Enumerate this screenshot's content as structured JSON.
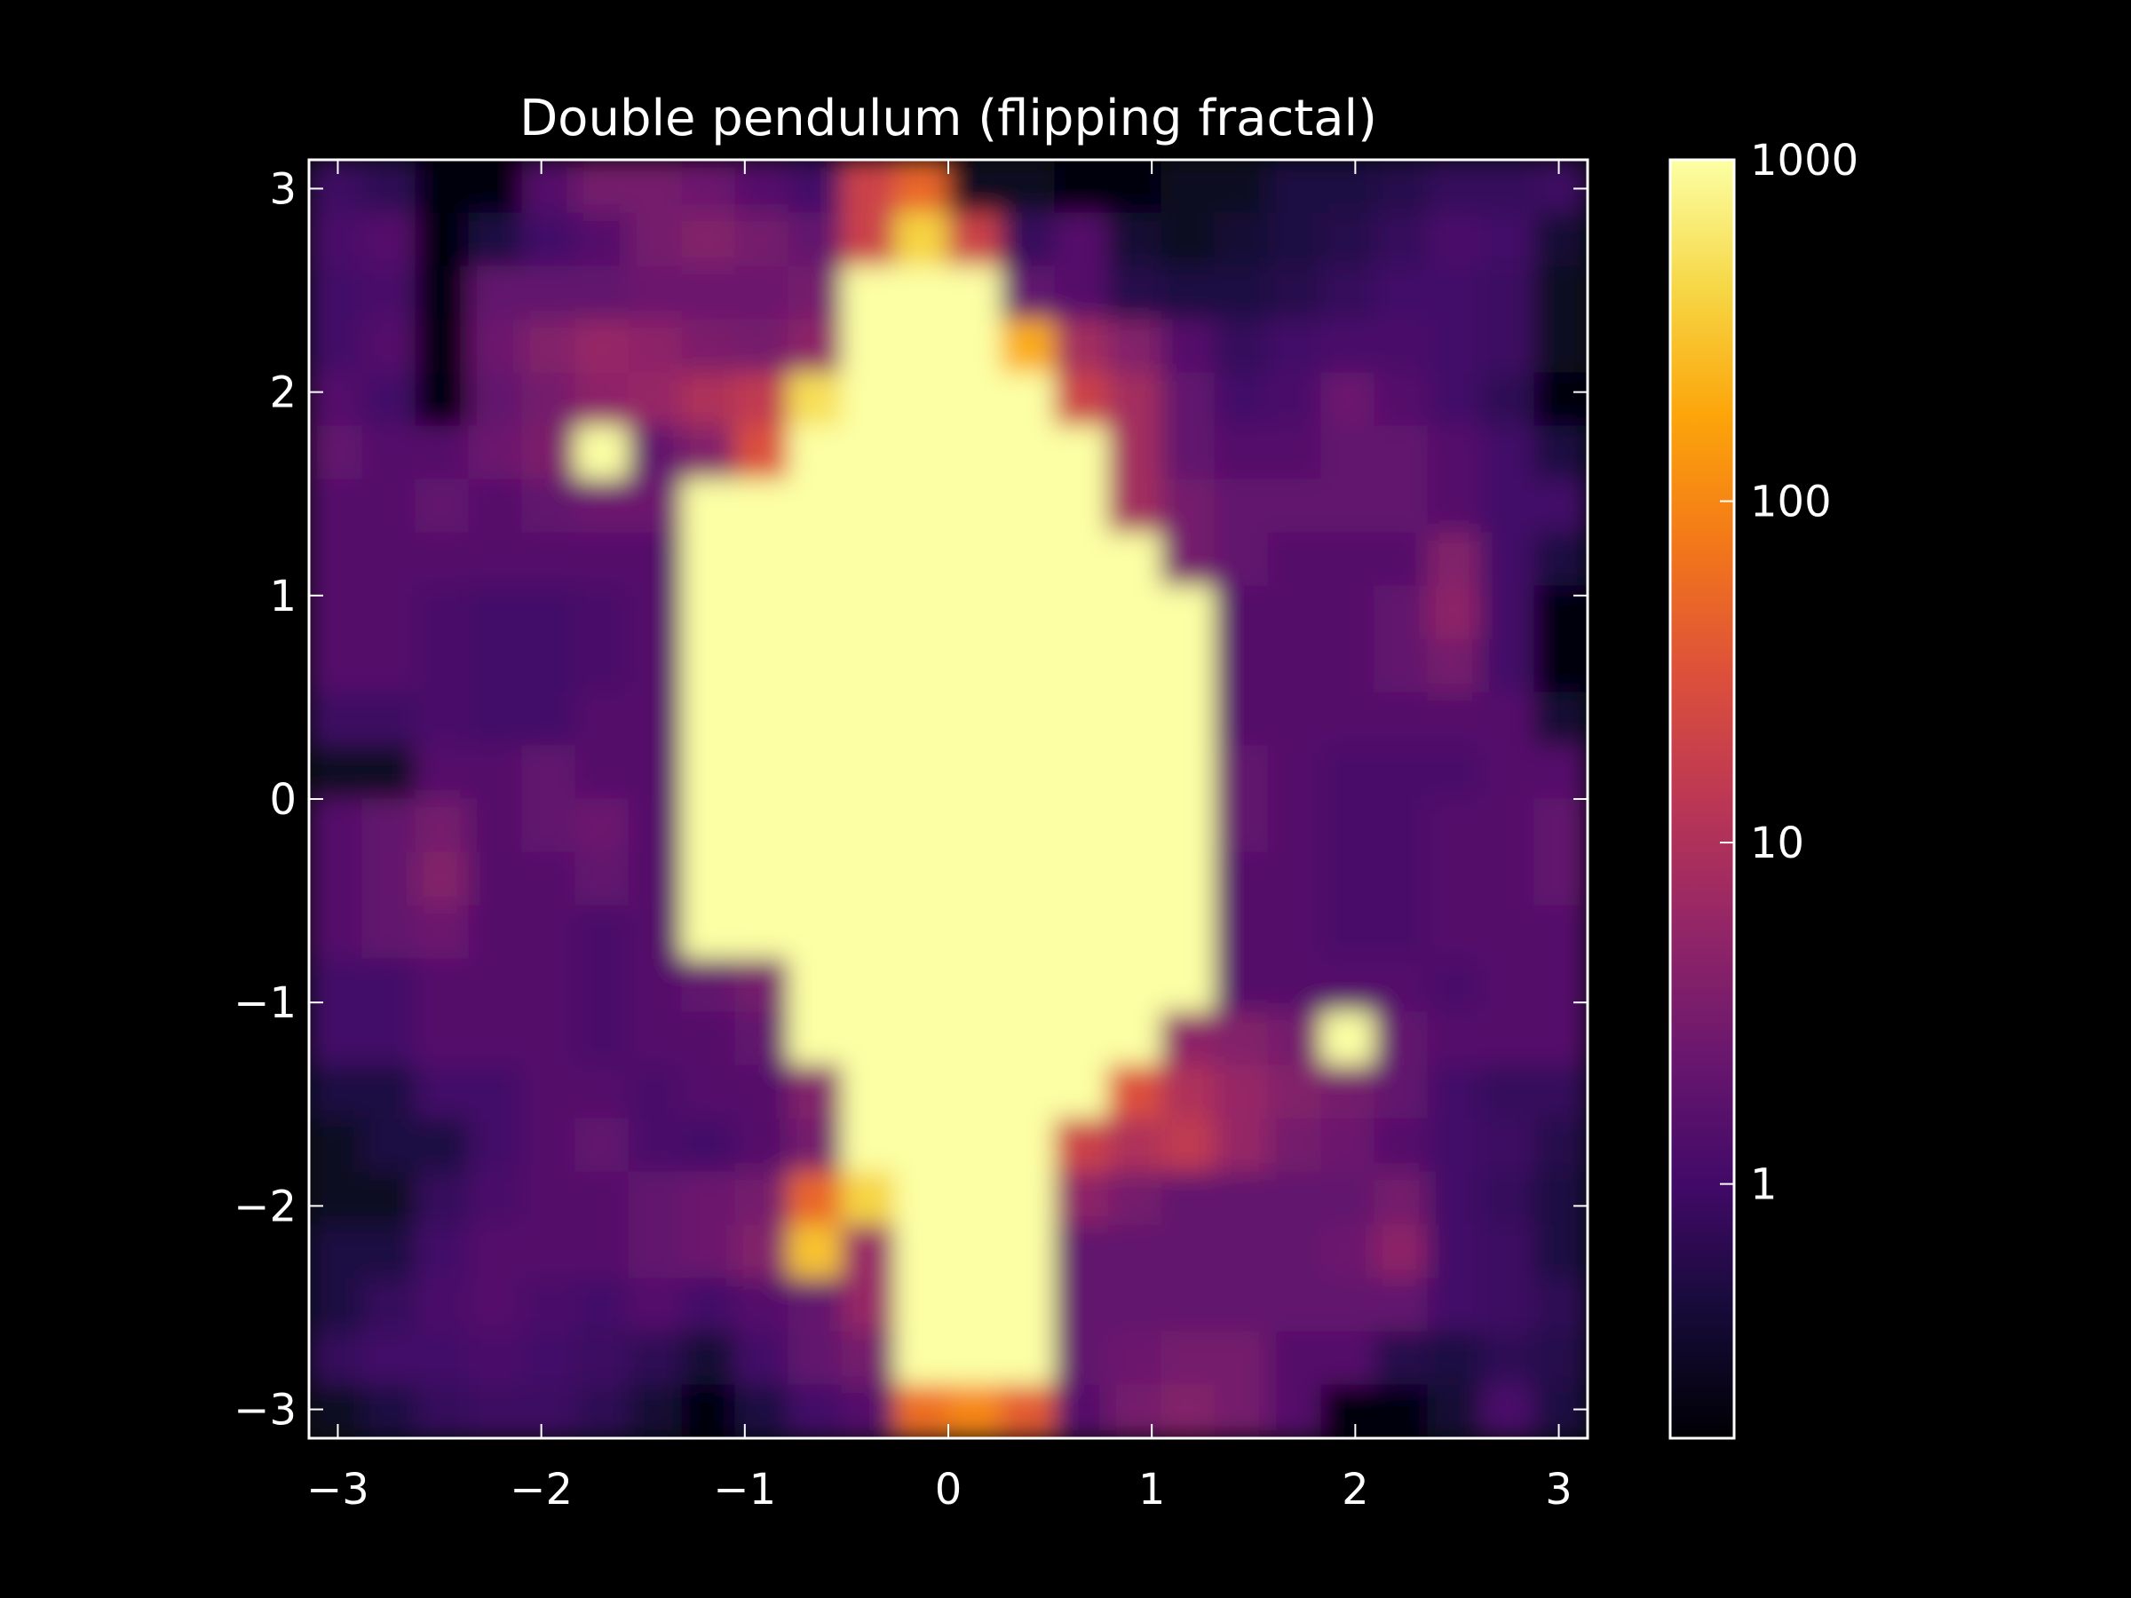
{
  "chart_data": {
    "type": "heatmap",
    "title": "Double pendulum (flipping fractal)",
    "xlabel": "",
    "ylabel": "",
    "xlim": [
      -3.14159,
      3.14159
    ],
    "ylim": [
      -3.14159,
      3.14159
    ],
    "x_ticks": [
      -3,
      -2,
      -1,
      0,
      1,
      2,
      3
    ],
    "x_tick_labels": [
      "−3",
      "−2",
      "−1",
      "0",
      "1",
      "2",
      "3"
    ],
    "y_ticks": [
      -3,
      -2,
      -1,
      0,
      1,
      2,
      3
    ],
    "y_tick_labels": [
      "−3",
      "−2",
      "−1",
      "0",
      "1",
      "2",
      "3"
    ],
    "colormap": "inferno",
    "color_scale": "log",
    "colorbar_range": [
      0.18,
      1000
    ],
    "colorbar_ticks": [
      1,
      10,
      100,
      1000
    ],
    "colorbar_tick_labels": [
      "1",
      "10",
      "100",
      "1000"
    ],
    "grid": false,
    "grid_shape": [
      24,
      24
    ],
    "grid_note_x": "columns span x from -pi to pi, rows listed from y = pi (top) down to y = -pi (bottom)",
    "values": [
      [
        0.9,
        0.7,
        0.2,
        0.2,
        1.5,
        3.0,
        3.0,
        2.5,
        1.5,
        1.0,
        20,
        50,
        0.3,
        0.3,
        0.2,
        0.2,
        0.3,
        0.3,
        0.5,
        0.5,
        0.6,
        0.8,
        0.8,
        0.9
      ],
      [
        1.2,
        1.5,
        0.2,
        0.5,
        1.0,
        1.5,
        3.0,
        4.0,
        3.0,
        2.0,
        20,
        400,
        20,
        0.8,
        1.5,
        0.4,
        0.3,
        0.4,
        0.5,
        0.6,
        0.8,
        1.2,
        1.0,
        0.4
      ],
      [
        1.0,
        1.2,
        0.2,
        2.0,
        2.0,
        2.0,
        2.5,
        2.5,
        2.5,
        3.0,
        1000,
        1000,
        1000,
        2.0,
        1.5,
        0.6,
        0.5,
        0.5,
        0.6,
        0.8,
        1.0,
        1.0,
        0.9,
        0.3
      ],
      [
        1.0,
        1.5,
        0.2,
        2.5,
        4.0,
        6.0,
        5.0,
        3.5,
        3.0,
        5.0,
        1000,
        1000,
        1000,
        200,
        8.0,
        4.0,
        1.5,
        0.8,
        1.0,
        1.2,
        1.2,
        1.0,
        0.9,
        0.3
      ],
      [
        1.5,
        1.0,
        0.2,
        2.0,
        3.0,
        5.0,
        6.0,
        10,
        15,
        500,
        1000,
        1000,
        1000,
        1000,
        20,
        8.0,
        2.0,
        1.0,
        1.2,
        2.5,
        1.5,
        1.0,
        0.7,
        0.2
      ],
      [
        2.0,
        1.5,
        1.5,
        2.5,
        3.5,
        1000,
        2.0,
        4.0,
        30,
        1000,
        1000,
        1000,
        1000,
        1000,
        1000,
        8.0,
        2.0,
        1.5,
        1.5,
        2.0,
        2.0,
        1.5,
        1.0,
        0.5
      ],
      [
        1.5,
        1.5,
        2.0,
        1.5,
        2.0,
        2.5,
        2.5,
        1000,
        1000,
        1000,
        1000,
        1000,
        1000,
        1000,
        1000,
        8.0,
        3.0,
        2.0,
        2.0,
        2.0,
        2.0,
        1.5,
        1.0,
        1.0
      ],
      [
        1.5,
        1.5,
        1.5,
        1.5,
        1.5,
        1.5,
        1.5,
        1000,
        1000,
        1000,
        1000,
        1000,
        1000,
        1000,
        1000,
        1000,
        3.0,
        2.0,
        1.5,
        1.5,
        1.5,
        4.0,
        1.0,
        0.5
      ],
      [
        1.5,
        1.5,
        1.2,
        1.0,
        1.0,
        1.2,
        1.5,
        1000,
        1000,
        1000,
        1000,
        1000,
        1000,
        1000,
        1000,
        1000,
        1000,
        1.5,
        1.5,
        1.5,
        2.0,
        5.0,
        1.0,
        0.2
      ],
      [
        1.5,
        1.5,
        1.2,
        1.0,
        1.0,
        1.2,
        1.5,
        1000,
        1000,
        1000,
        1000,
        1000,
        1000,
        1000,
        1000,
        1000,
        1000,
        1.5,
        1.5,
        1.5,
        2.0,
        3.0,
        1.0,
        0.2
      ],
      [
        0.9,
        0.9,
        1.2,
        1.0,
        1.0,
        1.5,
        1.5,
        1000,
        1000,
        1000,
        1000,
        1000,
        1000,
        1000,
        1000,
        1000,
        1000,
        1.5,
        1.5,
        1.5,
        1.5,
        1.5,
        1.5,
        0.4
      ],
      [
        0.3,
        0.3,
        1.5,
        1.5,
        2.0,
        1.5,
        1.5,
        1000,
        1000,
        1000,
        1000,
        1000,
        1000,
        1000,
        1000,
        1000,
        1000,
        2.0,
        1.5,
        1.2,
        1.2,
        1.2,
        1.5,
        1.5
      ],
      [
        1.5,
        2.0,
        3.0,
        1.5,
        2.0,
        2.5,
        1.5,
        1000,
        1000,
        1000,
        1000,
        1000,
        1000,
        1000,
        1000,
        1000,
        1000,
        2.0,
        1.5,
        1.2,
        1.2,
        1.5,
        1.5,
        2.0
      ],
      [
        1.5,
        2.0,
        4.0,
        1.5,
        1.5,
        2.0,
        1.5,
        1000,
        1000,
        1000,
        1000,
        1000,
        1000,
        1000,
        1000,
        1000,
        1000,
        1.5,
        1.5,
        1.2,
        1.2,
        1.5,
        1.5,
        2.0
      ],
      [
        1.5,
        2.0,
        2.5,
        1.5,
        1.5,
        1.2,
        1.5,
        1000,
        1000,
        1000,
        1000,
        1000,
        1000,
        1000,
        1000,
        1000,
        1000,
        1.5,
        1.5,
        1.2,
        1.2,
        1.5,
        1.5,
        1.5
      ],
      [
        1.0,
        1.0,
        1.5,
        1.5,
        1.5,
        1.2,
        1.5,
        2.0,
        3.0,
        1000,
        1000,
        1000,
        1000,
        1000,
        1000,
        1000,
        1000,
        1.5,
        1.5,
        1.5,
        1.5,
        1.2,
        1.5,
        1.5
      ],
      [
        1.0,
        1.0,
        1.5,
        1.5,
        1.5,
        1.2,
        1.5,
        1.5,
        2.0,
        1000,
        1000,
        1000,
        1000,
        1000,
        1000,
        1000,
        5.0,
        4.0,
        3.0,
        1000,
        2.0,
        1.5,
        1.5,
        1.5
      ],
      [
        0.5,
        0.5,
        1.0,
        1.0,
        1.5,
        1.5,
        1.2,
        1.5,
        1.5,
        4.0,
        1000,
        1000,
        1000,
        1000,
        1000,
        30,
        10,
        6.0,
        4.0,
        3.0,
        2.0,
        1.0,
        0.8,
        0.8
      ],
      [
        0.3,
        0.5,
        0.5,
        1.0,
        1.5,
        2.0,
        1.2,
        1.0,
        1.5,
        3.0,
        1000,
        1000,
        1000,
        1000,
        20,
        10,
        15,
        6.0,
        3.0,
        2.5,
        1.5,
        1.0,
        0.9,
        0.6
      ],
      [
        0.3,
        0.3,
        0.8,
        1.2,
        1.5,
        1.5,
        2.0,
        2.5,
        3.0,
        50,
        400,
        1000,
        1000,
        1000,
        5.0,
        3.0,
        2.0,
        2.0,
        2.0,
        2.0,
        3.0,
        1.0,
        0.8,
        0.5
      ],
      [
        0.5,
        0.5,
        1.0,
        1.5,
        1.5,
        1.5,
        2.0,
        2.5,
        4.0,
        300,
        6.0,
        1000,
        1000,
        1000,
        2.0,
        2.0,
        2.0,
        2.0,
        2.0,
        2.5,
        5.0,
        1.0,
        0.9,
        0.5
      ],
      [
        0.5,
        0.8,
        1.2,
        1.5,
        1.2,
        1.0,
        1.5,
        1.0,
        1.5,
        2.0,
        6.0,
        1000,
        1000,
        1000,
        2.0,
        2.0,
        2.0,
        2.0,
        2.0,
        2.0,
        2.0,
        1.0,
        0.9,
        0.7
      ],
      [
        0.8,
        1.0,
        1.0,
        1.2,
        1.0,
        0.9,
        0.7,
        0.4,
        1.0,
        2.0,
        3.0,
        1000,
        1000,
        1000,
        2.0,
        2.5,
        3.0,
        3.0,
        1.5,
        1.5,
        0.6,
        0.5,
        0.7,
        0.6
      ],
      [
        0.3,
        0.5,
        0.8,
        0.9,
        0.9,
        0.7,
        0.4,
        0.2,
        0.5,
        1.0,
        1.5,
        60,
        100,
        40,
        1.5,
        3.0,
        4.0,
        3.0,
        1.5,
        0.2,
        0.2,
        0.4,
        1.2,
        0.5
      ]
    ]
  }
}
